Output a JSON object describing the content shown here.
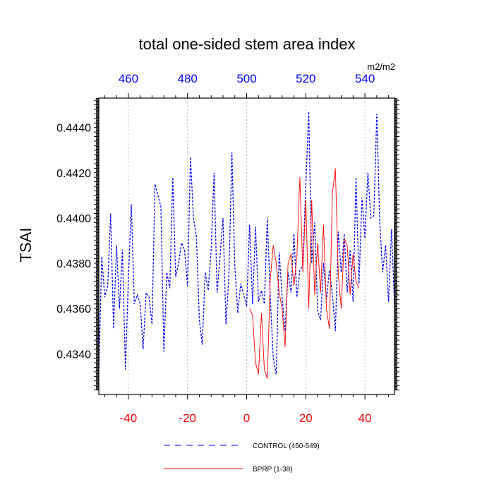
{
  "chart_data": {
    "type": "line",
    "title": "total one-sided stem area index",
    "units": "m2/m2",
    "ylabel": "TSAI",
    "xlabel": "",
    "ylim": [
      0.4322,
      0.4453
    ],
    "yticks": [
      0.434,
      0.436,
      0.438,
      0.44,
      0.442,
      0.444
    ],
    "ytick_labels": [
      "0.4340",
      "0.4360",
      "0.4380",
      "0.4400",
      "0.4420",
      "0.4440"
    ],
    "xlim_bottom": [
      -50,
      49
    ],
    "xticks_bottom": [
      -40,
      -20,
      0,
      20,
      40
    ],
    "xtick_labels_bottom": [
      "-40",
      "-20",
      "0",
      "20",
      "40"
    ],
    "xticks_top": [
      460,
      480,
      500,
      520,
      540
    ],
    "xtick_labels_top": [
      "460",
      "480",
      "500",
      "520",
      "540"
    ],
    "top_axis_offset": 500,
    "grid": "vertical dotted at major ticks",
    "legend_position": "bottom",
    "series": [
      {
        "name": "CONTROL (450-549)",
        "color": "#0000ff",
        "style": "dashed",
        "x": [
          -50,
          -49,
          -48,
          -47,
          -46,
          -45,
          -44,
          -43,
          -42,
          -41,
          -40,
          -39,
          -38,
          -37,
          -36,
          -35,
          -34,
          -33,
          -32,
          -31,
          -30,
          -29,
          -28,
          -27,
          -26,
          -25,
          -24,
          -23,
          -22,
          -21,
          -20,
          -19,
          -18,
          -17,
          -16,
          -15,
          -14,
          -13,
          -12,
          -11,
          -10,
          -9,
          -8,
          -7,
          -6,
          -5,
          -4,
          -3,
          -2,
          -1,
          0,
          1,
          2,
          3,
          4,
          5,
          6,
          7,
          8,
          9,
          10,
          11,
          12,
          13,
          14,
          15,
          16,
          17,
          18,
          19,
          20,
          21,
          22,
          23,
          24,
          25,
          26,
          27,
          28,
          29,
          30,
          31,
          32,
          33,
          34,
          35,
          36,
          37,
          38,
          39,
          40,
          41,
          42,
          43,
          44,
          45,
          46,
          47,
          48,
          49
        ],
        "y": [
          0.4332,
          0.4383,
          0.4365,
          0.437,
          0.4402,
          0.4351,
          0.4388,
          0.436,
          0.4386,
          0.4333,
          0.4373,
          0.4406,
          0.4362,
          0.4366,
          0.4362,
          0.4342,
          0.4367,
          0.4365,
          0.4353,
          0.4415,
          0.441,
          0.4405,
          0.4341,
          0.4376,
          0.4369,
          0.4418,
          0.4374,
          0.438,
          0.4389,
          0.4386,
          0.437,
          0.4427,
          0.44,
          0.4392,
          0.4355,
          0.4344,
          0.4376,
          0.4368,
          0.4386,
          0.442,
          0.4367,
          0.4383,
          0.44,
          0.4353,
          0.4375,
          0.4429,
          0.4379,
          0.4358,
          0.4371,
          0.4366,
          0.4361,
          0.4397,
          0.4362,
          0.4396,
          0.4363,
          0.4368,
          0.4362,
          0.44,
          0.4365,
          0.4338,
          0.4331,
          0.4385,
          0.4365,
          0.435,
          0.4376,
          0.4367,
          0.4393,
          0.4365,
          0.4377,
          0.4379,
          0.4414,
          0.4447,
          0.438,
          0.4398,
          0.4359,
          0.4355,
          0.438,
          0.4364,
          0.4377,
          0.4366,
          0.435,
          0.4394,
          0.4376,
          0.4393,
          0.4367,
          0.4386,
          0.4363,
          0.4418,
          0.4371,
          0.4409,
          0.4391,
          0.442,
          0.44,
          0.4401,
          0.4446,
          0.4399,
          0.4376,
          0.4388,
          0.4363,
          0.4395
        ],
        "y_tail": 0.4362
      },
      {
        "name": "BPRP (1-38)",
        "color": "#ff0000",
        "style": "solid",
        "x": [
          1,
          2,
          3,
          4,
          5,
          6,
          7,
          8,
          9,
          10,
          11,
          12,
          13,
          14,
          15,
          16,
          17,
          18,
          19,
          20,
          21,
          22,
          23,
          24,
          25,
          26,
          27,
          28,
          29,
          30,
          31,
          32,
          33,
          34,
          35,
          36,
          37,
          38
        ],
        "y": [
          0.436,
          0.4357,
          0.4336,
          0.4331,
          0.4358,
          0.4333,
          0.4329,
          0.4373,
          0.4388,
          0.438,
          0.4367,
          0.436,
          0.4343,
          0.438,
          0.4384,
          0.437,
          0.4383,
          0.4418,
          0.4376,
          0.4408,
          0.436,
          0.4408,
          0.4366,
          0.4389,
          0.4367,
          0.4397,
          0.436,
          0.4351,
          0.4411,
          0.4422,
          0.4375,
          0.436,
          0.4391,
          0.4388,
          0.4366,
          0.4384,
          0.4372,
          0.4369
        ]
      }
    ]
  }
}
